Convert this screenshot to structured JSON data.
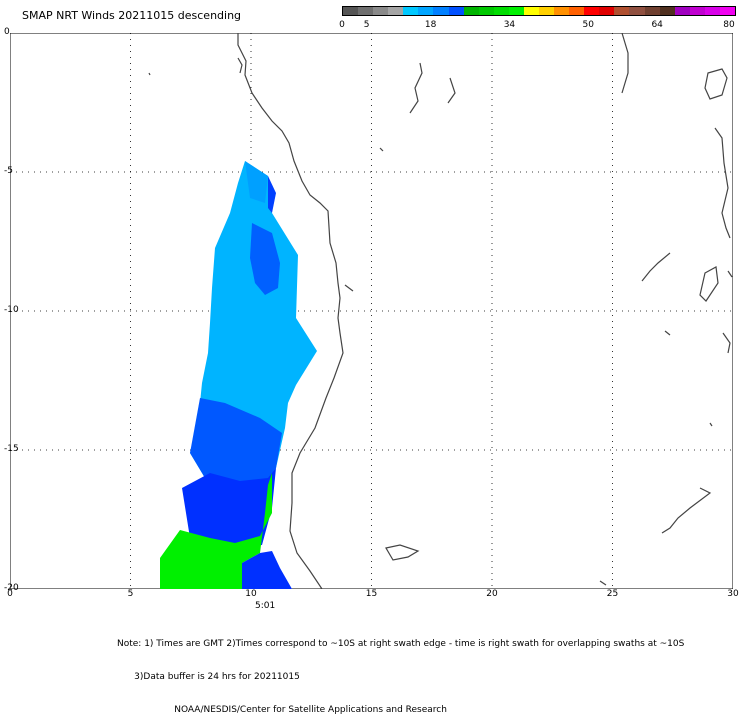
{
  "title": "SMAP NRT Winds  20211015 descending",
  "colorbar": {
    "colors": [
      "#555555",
      "#6f6f6f",
      "#8a8a8a",
      "#a5a5a5",
      "#00c8ff",
      "#00a5ff",
      "#0080ff",
      "#0050ff",
      "#00b400",
      "#00c800",
      "#00dc00",
      "#00f000",
      "#ffff00",
      "#ffd000",
      "#ff9000",
      "#ff6000",
      "#ff0000",
      "#e00000",
      "#b05030",
      "#905040",
      "#704030",
      "#503020",
      "#a000c0",
      "#c000d0",
      "#d800e8",
      "#f000f0"
    ],
    "tick_labels": [
      "0",
      "5",
      "18",
      "34",
      "50",
      "64",
      "80"
    ],
    "tick_values": [
      0,
      5,
      18,
      34,
      50,
      64,
      80
    ]
  },
  "axes": {
    "x_range": [
      0,
      30
    ],
    "y_range": [
      -20,
      0
    ],
    "x_ticks": [
      "0",
      "5",
      "10",
      "15",
      "20",
      "25",
      "30"
    ],
    "y_ticks": [
      "0",
      "-5",
      "-10",
      "-15",
      "-20"
    ],
    "grid": "dotted"
  },
  "colors": {
    "coast": "#444444",
    "wind_light_blue": "#00b4ff",
    "wind_mid_blue": "#0070ff",
    "wind_dark_blue": "#0038ff",
    "wind_green": "#00f000"
  },
  "time_label": "5:01",
  "note_lines": [
    "Note: 1) Times are GMT 2)Times correspond to ~10S at right swath edge - time is right swath for overlapping swaths at ~10S",
    "      3)Data buffer is 24 hrs for 20211015",
    "                    NOAA/NESDIS/Center for Satellite Applications and Research"
  ]
}
